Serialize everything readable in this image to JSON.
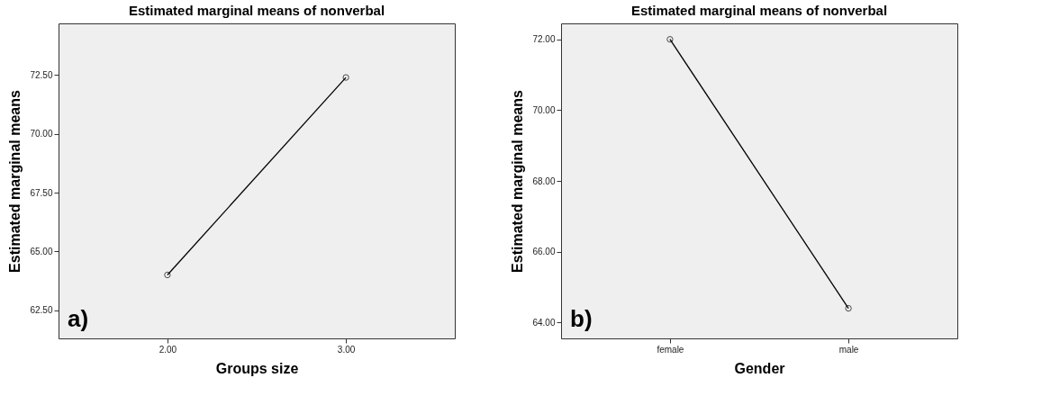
{
  "chart_data": [
    {
      "type": "line",
      "title": "Estimated marginal means of nonverbal",
      "xlabel": "Groups size",
      "ylabel": "Estimated marginal means",
      "categories": [
        "2.00",
        "3.00"
      ],
      "series": [
        {
          "color": "#000000",
          "values": [
            64.0,
            72.4
          ]
        }
      ],
      "ylim": [
        61.3,
        74.7
      ],
      "yticks": [
        {
          "value": 62.5,
          "label": "62.50"
        },
        {
          "value": 65,
          "label": "65.00"
        },
        {
          "value": 67.5,
          "label": "67.50"
        },
        {
          "value": 70,
          "label": "70.00"
        },
        {
          "value": 72.5,
          "label": "72.50"
        }
      ],
      "grid": false,
      "legend": false,
      "marker": "circle",
      "line_style": "solid",
      "annotations": [
        "a)"
      ]
    },
    {
      "type": "line",
      "title": "Estimated marginal means of nonverbal",
      "xlabel": "Gender",
      "ylabel": "Estimated marginal means",
      "categories": [
        "female",
        "male"
      ],
      "series": [
        {
          "color": "#000000",
          "values": [
            72.0,
            64.4
          ]
        }
      ],
      "ylim": [
        63.55,
        72.45
      ],
      "yticks": [
        {
          "value": 64,
          "label": "64.00"
        },
        {
          "value": 66,
          "label": "66.00"
        },
        {
          "value": 68,
          "label": "68.00"
        },
        {
          "value": 70,
          "label": "70.00"
        },
        {
          "value": 72,
          "label": "72.00"
        }
      ],
      "grid": false,
      "legend": false,
      "marker": "circle",
      "line_style": "solid",
      "annotations": [
        "b)"
      ]
    }
  ]
}
